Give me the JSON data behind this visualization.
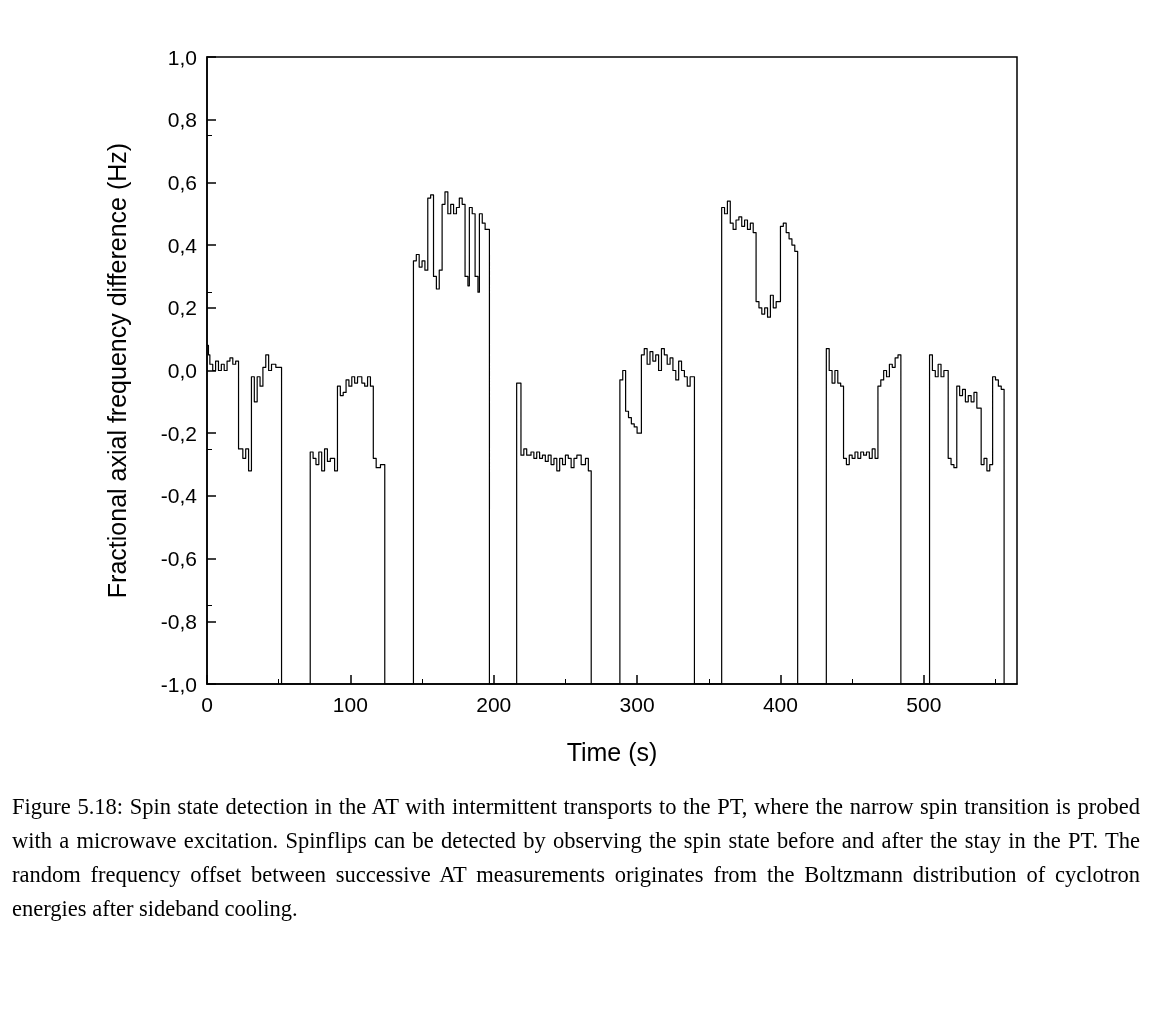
{
  "chart_data": {
    "type": "step",
    "xlabel": "Time (s)",
    "ylabel": "Fractional axial frequency difference (Hz)",
    "x": [
      0,
      1,
      2,
      4,
      6,
      8,
      10,
      12,
      14,
      16,
      18,
      20,
      22,
      25,
      27,
      29,
      31,
      33,
      35,
      37,
      39,
      41,
      43,
      45,
      48,
      52,
      72,
      74,
      76,
      78,
      80,
      82,
      84,
      86,
      89,
      91,
      93,
      95,
      97,
      99,
      101,
      103,
      105,
      108,
      110,
      112,
      114,
      116,
      118,
      121,
      124,
      144,
      146,
      148,
      150,
      152,
      154,
      156,
      158,
      160,
      162,
      164,
      166,
      168,
      170,
      172,
      174,
      176,
      178,
      180,
      182,
      183,
      185,
      187,
      189,
      190,
      192,
      194,
      197,
      216,
      219,
      221,
      223,
      226,
      228,
      230,
      232,
      234,
      236,
      238,
      240,
      242,
      244,
      246,
      248,
      250,
      252,
      254,
      256,
      258,
      261,
      264,
      266,
      268,
      288,
      290,
      292,
      294,
      296,
      298,
      300,
      303,
      305,
      307,
      309,
      311,
      313,
      315,
      317,
      319,
      321,
      323,
      325,
      327,
      329,
      331,
      333,
      335,
      337,
      340,
      359,
      361,
      363,
      365,
      367,
      369,
      371,
      373,
      375,
      377,
      379,
      381,
      383,
      385,
      387,
      389,
      391,
      393,
      395,
      397,
      400,
      402,
      404,
      406,
      408,
      410,
      412,
      432,
      434,
      436,
      438,
      440,
      442,
      444,
      446,
      448,
      450,
      452,
      454,
      456,
      458,
      460,
      462,
      464,
      466,
      468,
      470,
      472,
      474,
      476,
      478,
      480,
      482,
      484,
      504,
      506,
      508,
      510,
      512,
      514,
      517,
      519,
      521,
      523,
      525,
      527,
      529,
      531,
      533,
      535,
      537,
      540,
      542,
      544,
      546,
      548,
      550,
      552,
      554,
      556
    ],
    "series": [
      {
        "color": "#000000",
        "values": [
          0.08,
          0.05,
          0.02,
          0.0,
          0.03,
          0.0,
          0.02,
          0.0,
          0.03,
          0.04,
          0.02,
          0.03,
          -0.25,
          -0.28,
          -0.25,
          -0.32,
          -0.02,
          -0.1,
          -0.02,
          -0.05,
          0.01,
          0.05,
          0.0,
          0.02,
          0.01,
          -1,
          -0.26,
          -0.28,
          -0.3,
          -0.26,
          -0.32,
          -0.25,
          -0.29,
          -0.28,
          -0.32,
          -0.05,
          -0.08,
          -0.07,
          -0.03,
          -0.05,
          -0.02,
          -0.04,
          -0.02,
          -0.04,
          -0.05,
          -0.02,
          -0.05,
          -0.28,
          -0.31,
          -0.3,
          -1,
          0.35,
          0.37,
          0.33,
          0.35,
          0.32,
          0.55,
          0.56,
          0.3,
          0.26,
          0.32,
          0.53,
          0.57,
          0.5,
          0.53,
          0.5,
          0.52,
          0.55,
          0.53,
          0.3,
          0.27,
          0.52,
          0.5,
          0.3,
          0.25,
          0.5,
          0.47,
          0.45,
          -1,
          -0.04,
          -0.27,
          -0.25,
          -0.27,
          -0.26,
          -0.28,
          -0.26,
          -0.28,
          -0.27,
          -0.29,
          -0.27,
          -0.3,
          -0.28,
          -0.32,
          -0.28,
          -0.3,
          -0.27,
          -0.28,
          -0.31,
          -0.28,
          -0.27,
          -0.3,
          -0.28,
          -0.32,
          -1,
          -0.03,
          0.0,
          -0.13,
          -0.15,
          -0.17,
          -0.18,
          -0.2,
          0.05,
          0.07,
          0.02,
          0.06,
          0.03,
          0.05,
          0.0,
          0.07,
          0.05,
          0.02,
          0.04,
          0.0,
          -0.03,
          0.03,
          0.0,
          -0.02,
          -0.05,
          -0.02,
          -1,
          0.52,
          0.5,
          0.54,
          0.47,
          0.45,
          0.48,
          0.49,
          0.46,
          0.48,
          0.45,
          0.47,
          0.44,
          0.22,
          0.2,
          0.18,
          0.2,
          0.17,
          0.24,
          0.2,
          0.22,
          0.46,
          0.47,
          0.44,
          0.42,
          0.4,
          0.38,
          -1,
          0.07,
          0.0,
          -0.04,
          0.0,
          -0.04,
          -0.05,
          -0.28,
          -0.3,
          -0.27,
          -0.28,
          -0.26,
          -0.28,
          -0.26,
          -0.27,
          -0.26,
          -0.28,
          -0.25,
          -0.28,
          -0.05,
          -0.03,
          0.0,
          -0.02,
          0.02,
          0.01,
          0.04,
          0.05,
          -1,
          0.05,
          0.0,
          -0.02,
          0.02,
          -0.02,
          0.0,
          -0.28,
          -0.3,
          -0.31,
          -0.05,
          -0.08,
          -0.06,
          -0.1,
          -0.08,
          -0.1,
          -0.07,
          -0.12,
          -0.3,
          -0.28,
          -0.32,
          -0.3,
          -0.02,
          -0.03,
          -0.05,
          -0.06,
          -1
        ]
      }
    ],
    "xlim": [
      0,
      565
    ],
    "xticks": [
      0,
      100,
      200,
      300,
      400,
      500
    ],
    "ylim": [
      -1,
      1
    ],
    "yticks": [
      {
        "value": -1,
        "label": "-1,0"
      },
      {
        "value": -0.8,
        "label": "-0,8"
      },
      {
        "value": -0.6,
        "label": "-0,6"
      },
      {
        "value": -0.4,
        "label": "-0,4"
      },
      {
        "value": -0.2,
        "label": "-0,2"
      },
      {
        "value": 0,
        "label": "0,0"
      },
      {
        "value": 0.2,
        "label": "0,2"
      },
      {
        "value": 0.4,
        "label": "0,4"
      },
      {
        "value": 0.6,
        "label": "0,6"
      },
      {
        "value": 0.8,
        "label": "0,8"
      },
      {
        "value": 1,
        "label": "1,0"
      }
    ],
    "marker": "none",
    "line_style": "solid",
    "annotations": [
      "Figure 5.18: Spin state detection in the AT with intermittent transports to the PT, where the narrow spin transition is probed with a microwave excitation. Spinflips can be detected by observing the spin state before and after the stay in the PT. The random frequency offset between successive AT measurements originates from the Boltzmann distribution of cyclotron energies after sideband cooling."
    ]
  }
}
